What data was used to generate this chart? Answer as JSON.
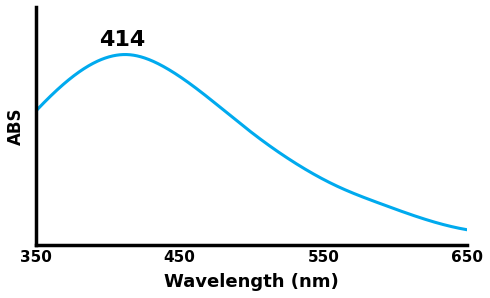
{
  "x_min": 350,
  "x_max": 650,
  "x_ticks": [
    350,
    450,
    550,
    650
  ],
  "peak_wavelength": 414,
  "peak_label": "414",
  "xlabel": "Wavelength (nm)",
  "ylabel": "ABS",
  "line_color": "#00AAEE",
  "line_width": 2.2,
  "background_color": "#ffffff",
  "annotation_fontsize": 16,
  "xlabel_fontsize": 13,
  "ylabel_fontsize": 12,
  "control_points_x": [
    350,
    380,
    414,
    440,
    470,
    500,
    530,
    560,
    590,
    620,
    650
  ],
  "control_points_y": [
    0.62,
    0.8,
    0.88,
    0.82,
    0.68,
    0.52,
    0.38,
    0.27,
    0.19,
    0.12,
    0.07
  ]
}
